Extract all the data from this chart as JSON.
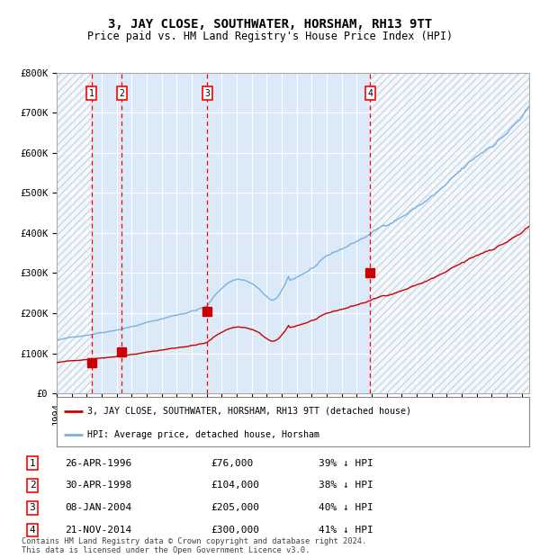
{
  "title": "3, JAY CLOSE, SOUTHWATER, HORSHAM, RH13 9TT",
  "subtitle": "Price paid vs. HM Land Registry's House Price Index (HPI)",
  "ylim": [
    0,
    800000
  ],
  "yticks": [
    0,
    100000,
    200000,
    300000,
    400000,
    500000,
    600000,
    700000,
    800000
  ],
  "ytick_labels": [
    "£0",
    "£100K",
    "£200K",
    "£300K",
    "£400K",
    "£500K",
    "£600K",
    "£700K",
    "£800K"
  ],
  "xlim_start": 1994.0,
  "xlim_end": 2025.5,
  "transaction_dates": [
    1996.32,
    1998.33,
    2004.03,
    2014.9
  ],
  "transaction_prices": [
    76000,
    104000,
    205000,
    300000
  ],
  "transaction_labels": [
    "1",
    "2",
    "3",
    "4"
  ],
  "transaction_hpi_pcts": [
    "39%",
    "38%",
    "40%",
    "41%"
  ],
  "transaction_date_strs": [
    "26-APR-1996",
    "30-APR-1998",
    "08-JAN-2004",
    "21-NOV-2014"
  ],
  "transaction_price_strs": [
    "£76,000",
    "£104,000",
    "£205,000",
    "£300,000"
  ],
  "hpi_color": "#7ab0e0",
  "price_color": "#cc0000",
  "background_color": "#ffffff",
  "plot_bg_color": "#dce9f8",
  "legend_labels": [
    "3, JAY CLOSE, SOUTHWATER, HORSHAM, RH13 9TT (detached house)",
    "HPI: Average price, detached house, Horsham"
  ],
  "footer_text": "Contains HM Land Registry data © Crown copyright and database right 2024.\nThis data is licensed under the Open Government Licence v3.0.",
  "grid_color": "#ffffff",
  "title_fontsize": 10,
  "subtitle_fontsize": 8.5,
  "tick_fontsize": 7.5
}
